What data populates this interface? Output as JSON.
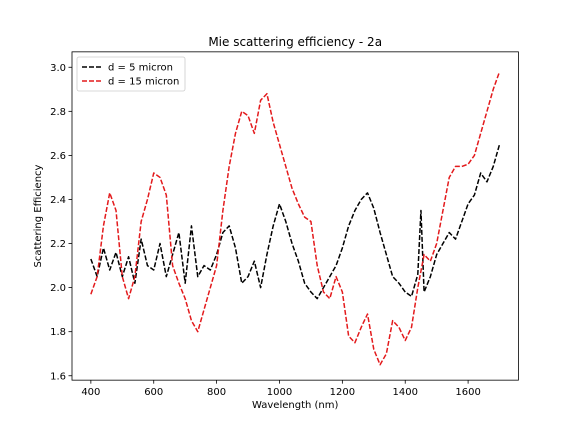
{
  "chart_data": {
    "type": "line",
    "title": "Mie scattering efficiency - 2a",
    "xlabel": "Wavelength (nm)",
    "ylabel": "Scattering Efficiency",
    "xlim": [
      340,
      1760
    ],
    "ylim": [
      1.58,
      3.07
    ],
    "xticks": [
      400,
      600,
      800,
      1000,
      1200,
      1400,
      1600
    ],
    "yticks": [
      1.6,
      1.8,
      2.0,
      2.2,
      2.4,
      2.6,
      2.8,
      3.0
    ],
    "grid": false,
    "legend_position": "top-left",
    "series": [
      {
        "name": "d = 5 micron",
        "color": "#000000",
        "style": "dashed",
        "x": [
          400,
          420,
          440,
          460,
          480,
          500,
          520,
          540,
          560,
          580,
          600,
          620,
          640,
          660,
          680,
          700,
          720,
          740,
          760,
          780,
          800,
          820,
          840,
          860,
          880,
          900,
          920,
          940,
          960,
          980,
          1000,
          1020,
          1040,
          1060,
          1080,
          1100,
          1120,
          1140,
          1160,
          1180,
          1200,
          1220,
          1240,
          1260,
          1280,
          1300,
          1320,
          1340,
          1360,
          1380,
          1400,
          1420,
          1440,
          1450,
          1460,
          1480,
          1500,
          1520,
          1540,
          1560,
          1580,
          1600,
          1620,
          1640,
          1660,
          1680,
          1700
        ],
        "y": [
          2.13,
          2.05,
          2.18,
          2.08,
          2.16,
          2.05,
          2.14,
          2.02,
          2.22,
          2.1,
          2.08,
          2.2,
          2.05,
          2.15,
          2.25,
          2.02,
          2.28,
          2.05,
          2.1,
          2.08,
          2.15,
          2.25,
          2.28,
          2.18,
          2.02,
          2.05,
          2.12,
          2.0,
          2.15,
          2.28,
          2.38,
          2.3,
          2.2,
          2.12,
          2.02,
          1.98,
          1.95,
          2.0,
          2.05,
          2.1,
          2.18,
          2.28,
          2.35,
          2.4,
          2.43,
          2.36,
          2.25,
          2.15,
          2.05,
          2.02,
          1.98,
          1.96,
          2.06,
          2.35,
          1.98,
          2.05,
          2.15,
          2.2,
          2.25,
          2.22,
          2.3,
          2.38,
          2.42,
          2.52,
          2.48,
          2.55,
          2.65
        ]
      },
      {
        "name": "d = 15 micron",
        "color": "#e31a1c",
        "style": "dashed",
        "x": [
          400,
          420,
          440,
          460,
          480,
          500,
          520,
          540,
          560,
          580,
          600,
          620,
          640,
          660,
          680,
          700,
          720,
          740,
          760,
          780,
          800,
          820,
          840,
          860,
          880,
          900,
          920,
          940,
          960,
          980,
          1000,
          1020,
          1040,
          1060,
          1080,
          1100,
          1120,
          1140,
          1160,
          1180,
          1200,
          1220,
          1240,
          1260,
          1280,
          1300,
          1320,
          1340,
          1360,
          1380,
          1400,
          1420,
          1440,
          1460,
          1480,
          1500,
          1520,
          1540,
          1560,
          1580,
          1600,
          1620,
          1640,
          1660,
          1680,
          1700
        ],
        "y": [
          1.97,
          2.05,
          2.28,
          2.43,
          2.35,
          2.05,
          1.95,
          2.05,
          2.3,
          2.4,
          2.52,
          2.5,
          2.42,
          2.1,
          2.02,
          1.95,
          1.85,
          1.8,
          1.9,
          2.0,
          2.1,
          2.35,
          2.55,
          2.7,
          2.8,
          2.78,
          2.7,
          2.85,
          2.88,
          2.75,
          2.65,
          2.55,
          2.45,
          2.38,
          2.32,
          2.3,
          2.1,
          1.98,
          1.95,
          2.05,
          1.98,
          1.78,
          1.75,
          1.82,
          1.88,
          1.72,
          1.65,
          1.7,
          1.85,
          1.82,
          1.76,
          1.82,
          2.0,
          2.15,
          2.12,
          2.2,
          2.35,
          2.5,
          2.55,
          2.55,
          2.56,
          2.6,
          2.7,
          2.8,
          2.9,
          2.98
        ]
      }
    ]
  }
}
